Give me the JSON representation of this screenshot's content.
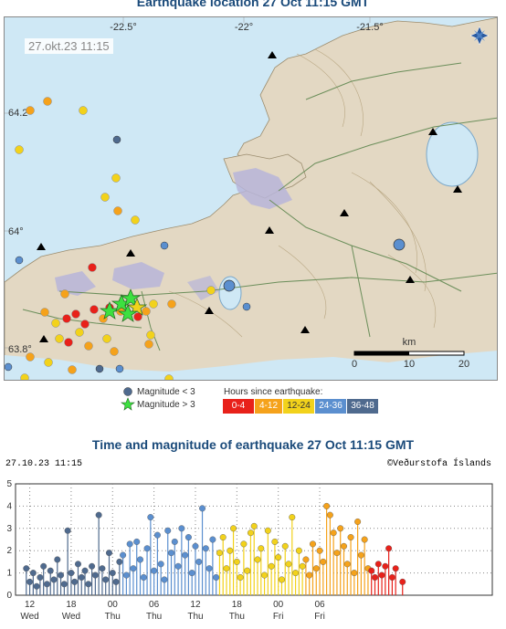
{
  "map": {
    "title": "Earthquake location   27 Oct 11:15 GMT",
    "timestamp": "27.okt.23  11:15",
    "longitude_labels": [
      "-22.5°",
      "-22°",
      "-21.5°"
    ],
    "latitude_labels": [
      "64.2°",
      "64°",
      "63.8°"
    ],
    "scale_unit": "km",
    "scale_ticks": [
      "0",
      "10",
      "20"
    ],
    "compass_icon": "compass-rose-icon",
    "colors": {
      "sea": "#cfe8f5",
      "land": "#e3d8c3",
      "lava": "#b7b5d9",
      "roads": "#6b8e5a"
    }
  },
  "legend": {
    "magnitude_lt3": "Magnitude < 3",
    "magnitude_gt3": "Magnitude > 3",
    "hours_title": "Hours since earthquake:",
    "hours": [
      {
        "label": "0-4",
        "color": "#e8211a"
      },
      {
        "label": "4-12",
        "color": "#f5a21b"
      },
      {
        "label": "12-24",
        "color": "#f2d21b"
      },
      {
        "label": "24-36",
        "color": "#5b8fcf"
      },
      {
        "label": "36-48",
        "color": "#4f6a8e"
      }
    ]
  },
  "timeseries": {
    "title": "Time and magnitude of earthquake   27 Oct 11:15 GMT",
    "date": "27.10.23  11:15",
    "copyright": "©Veðurstofa Íslands"
  },
  "chart_data": {
    "type": "scatter",
    "ylim": [
      0,
      5
    ],
    "y_ticks": [
      "0",
      "1",
      "2",
      "3",
      "4",
      "5"
    ],
    "x_ticks": [
      {
        "hour": "12",
        "day": "Wed"
      },
      {
        "hour": "18",
        "day": "Wed"
      },
      {
        "hour": "00",
        "day": "Thu"
      },
      {
        "hour": "06",
        "day": "Thu"
      },
      {
        "hour": "12",
        "day": "Thu"
      },
      {
        "hour": "18",
        "day": "Thu"
      },
      {
        "hour": "00",
        "day": "Fri"
      },
      {
        "hour": "06",
        "day": "Fri"
      }
    ],
    "series": [
      {
        "color": "#4f6a8e",
        "points": [
          [
            10.5,
            1.2
          ],
          [
            11,
            0.6
          ],
          [
            11.5,
            1.0
          ],
          [
            12,
            0.4
          ],
          [
            12.5,
            0.8
          ],
          [
            13,
            1.3
          ],
          [
            13.5,
            0.5
          ],
          [
            14,
            1.1
          ],
          [
            14.5,
            0.7
          ],
          [
            15,
            1.6
          ],
          [
            15.5,
            0.9
          ],
          [
            16,
            0.5
          ],
          [
            16.5,
            2.9
          ],
          [
            17,
            1.0
          ],
          [
            17.5,
            0.6
          ],
          [
            18,
            1.4
          ],
          [
            18.5,
            0.8
          ],
          [
            19,
            1.1
          ],
          [
            19.5,
            0.5
          ],
          [
            20,
            1.3
          ],
          [
            20.5,
            0.9
          ],
          [
            21,
            3.6
          ],
          [
            21.5,
            1.2
          ],
          [
            22,
            0.7
          ],
          [
            22.5,
            1.9
          ],
          [
            23,
            1.0
          ],
          [
            23.5,
            0.6
          ],
          [
            24,
            1.5
          ]
        ]
      },
      {
        "color": "#5b8fcf",
        "points": [
          [
            24.5,
            1.8
          ],
          [
            25,
            0.9
          ],
          [
            25.5,
            2.3
          ],
          [
            26,
            1.2
          ],
          [
            26.5,
            2.4
          ],
          [
            27,
            1.6
          ],
          [
            27.5,
            0.8
          ],
          [
            28,
            2.1
          ],
          [
            28.5,
            3.5
          ],
          [
            29,
            1.1
          ],
          [
            29.5,
            2.7
          ],
          [
            30,
            1.4
          ],
          [
            30.5,
            0.7
          ],
          [
            31,
            2.9
          ],
          [
            31.5,
            1.9
          ],
          [
            32,
            2.4
          ],
          [
            32.5,
            1.3
          ],
          [
            33,
            3.0
          ],
          [
            33.5,
            1.8
          ],
          [
            34,
            2.6
          ],
          [
            34.5,
            1.0
          ],
          [
            35,
            2.2
          ],
          [
            35.5,
            1.5
          ],
          [
            36,
            3.9
          ],
          [
            36.5,
            2.1
          ],
          [
            37,
            1.2
          ],
          [
            37.5,
            2.5
          ],
          [
            38,
            0.8
          ]
        ]
      },
      {
        "color": "#f2d21b",
        "points": [
          [
            38.5,
            1.9
          ],
          [
            39,
            2.6
          ],
          [
            39.5,
            1.2
          ],
          [
            40,
            2.0
          ],
          [
            40.5,
            3.0
          ],
          [
            41,
            1.5
          ],
          [
            41.5,
            0.8
          ],
          [
            42,
            2.3
          ],
          [
            42.5,
            1.1
          ],
          [
            43,
            2.8
          ],
          [
            43.5,
            3.1
          ],
          [
            44,
            1.6
          ],
          [
            44.5,
            2.1
          ],
          [
            45,
            0.9
          ],
          [
            45.5,
            2.9
          ],
          [
            46,
            1.3
          ],
          [
            46.5,
            2.4
          ],
          [
            47,
            1.7
          ],
          [
            47.5,
            0.7
          ],
          [
            48,
            2.2
          ],
          [
            48.5,
            1.4
          ],
          [
            49,
            3.5
          ],
          [
            49.5,
            1.0
          ],
          [
            50,
            2.0
          ],
          [
            50.5,
            1.3
          ]
        ]
      },
      {
        "color": "#f5a21b",
        "points": [
          [
            51,
            1.6
          ],
          [
            51.5,
            0.9
          ],
          [
            52,
            2.3
          ],
          [
            52.5,
            1.2
          ],
          [
            53,
            2.0
          ],
          [
            53.5,
            1.5
          ],
          [
            54,
            4.0
          ],
          [
            54.5,
            3.6
          ],
          [
            55,
            2.8
          ],
          [
            55.5,
            1.9
          ],
          [
            56,
            3.0
          ],
          [
            56.5,
            2.2
          ],
          [
            57,
            1.4
          ],
          [
            57.5,
            2.6
          ],
          [
            58,
            1.0
          ],
          [
            58.5,
            3.3
          ],
          [
            59,
            1.8
          ],
          [
            59.5,
            2.5
          ],
          [
            60,
            1.2
          ]
        ]
      },
      {
        "color": "#e8211a",
        "points": [
          [
            60.5,
            1.1
          ],
          [
            61,
            0.8
          ],
          [
            61.5,
            1.4
          ],
          [
            62,
            0.9
          ],
          [
            62.5,
            1.3
          ],
          [
            63,
            2.1
          ],
          [
            63.5,
            0.8
          ],
          [
            64,
            1.2
          ],
          [
            65,
            0.6
          ]
        ]
      }
    ],
    "x_start_hour": 11,
    "x_span_hours": 60
  }
}
